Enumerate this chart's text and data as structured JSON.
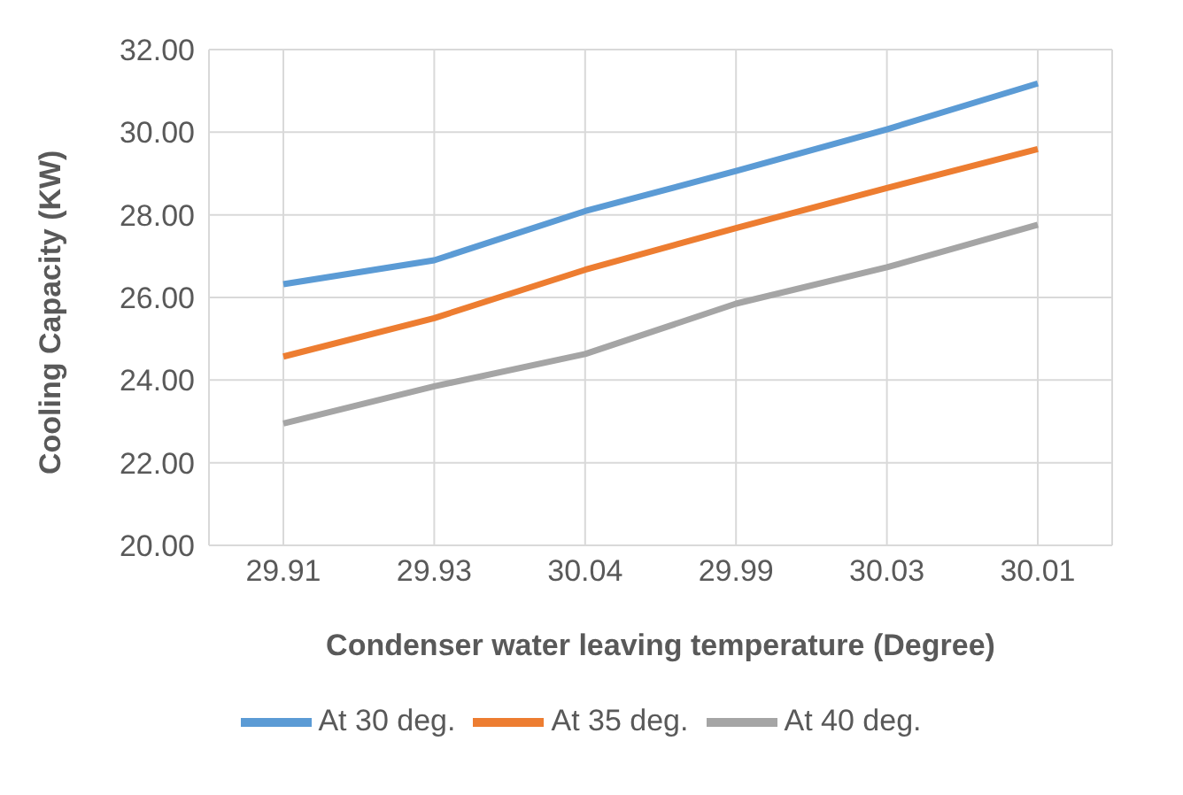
{
  "chart_data": {
    "type": "line",
    "xlabel": "Condenser water leaving temperature (Degree)",
    "ylabel": "Cooling Capacity (KW)",
    "categories": [
      "29.91",
      "29.93",
      "30.04",
      "29.99",
      "30.03",
      "30.01"
    ],
    "series": [
      {
        "name": "At 30 deg.",
        "color": "#5b9bd5",
        "values": [
          26.32,
          26.9,
          28.09,
          29.06,
          30.07,
          31.18
        ]
      },
      {
        "name": "At 35 deg.",
        "color": "#ed7d31",
        "values": [
          24.57,
          25.5,
          26.67,
          27.68,
          28.65,
          29.59
        ]
      },
      {
        "name": "At 40 deg.",
        "color": "#a5a5a5",
        "values": [
          22.95,
          23.85,
          24.63,
          25.85,
          26.73,
          27.76
        ]
      }
    ],
    "ylim": [
      20,
      32
    ],
    "yticks": [
      {
        "value": 20,
        "label": "20.00"
      },
      {
        "value": 22,
        "label": "22.00"
      },
      {
        "value": 24,
        "label": "24.00"
      },
      {
        "value": 26,
        "label": "26.00"
      },
      {
        "value": 28,
        "label": "28.00"
      },
      {
        "value": 30,
        "label": "30.00"
      },
      {
        "value": 32,
        "label": "32.00"
      }
    ],
    "grid": true,
    "legend": "bottom",
    "marker": "none",
    "line_style": "solid"
  }
}
